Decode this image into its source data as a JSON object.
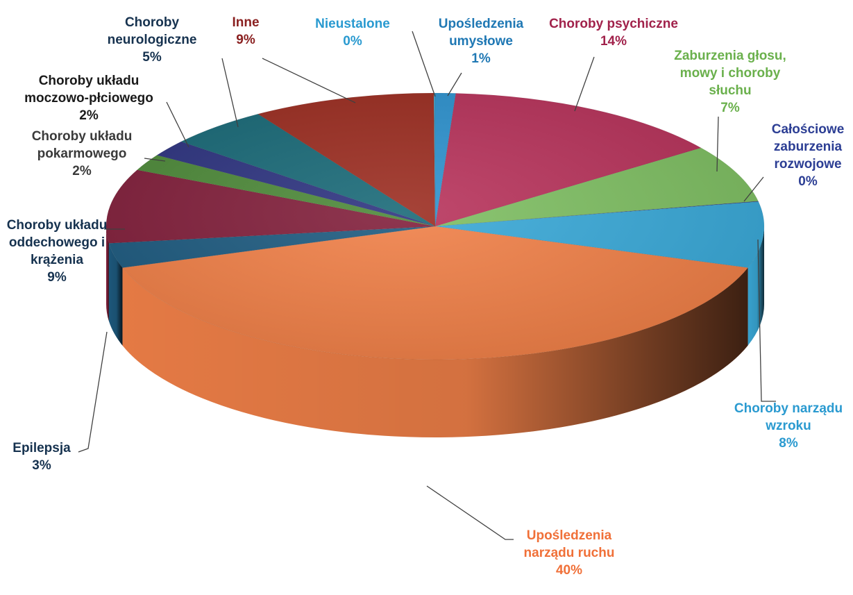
{
  "chart_data": {
    "type": "pie",
    "style": "3d",
    "start": "top, clockwise",
    "slices": [
      {
        "lines": [
          "Upośledzenia",
          "umysłowe",
          "1%"
        ],
        "value": 1,
        "color": "#2f93cf",
        "label_color": "#1f78b4"
      },
      {
        "lines": [
          "Choroby psychiczne",
          "14%"
        ],
        "value": 14,
        "color": "#b8345c",
        "label_color": "#a1224b"
      },
      {
        "lines": [
          "Zaburzenia głosu,",
          "mowy i choroby",
          "słuchu",
          "7%"
        ],
        "value": 7,
        "color": "#7fbf63",
        "label_color": "#6ab04c"
      },
      {
        "lines": [
          "Całościowe",
          "zaburzenia",
          "rozwojowe",
          "0%"
        ],
        "value": 0,
        "color": "#2c3e94",
        "label_color": "#2c3e94"
      },
      {
        "lines": [
          "Choroby narządu",
          "wzroku",
          "8%"
        ],
        "value": 8,
        "color": "#3aa9d8",
        "label_color": "#2a9ad0"
      },
      {
        "lines": [
          "Upośledzenia",
          "narządu ruchu",
          "40%"
        ],
        "value": 40,
        "color": "#f08048",
        "label_color": "#f07038"
      },
      {
        "lines": [
          "Epilepsja",
          "3%"
        ],
        "value": 3,
        "color": "#1e5b80",
        "label_color": "#16324f"
      },
      {
        "lines": [
          "Choroby układu",
          "oddechowego i",
          "krążenia",
          "9%"
        ],
        "value": 9,
        "color": "#82203c",
        "label_color": "#16324f"
      },
      {
        "lines": [
          "Choroby układu",
          "pokarmowego",
          "2%"
        ],
        "value": 2,
        "color": "#4e8a3a",
        "label_color": "#3a3a3a"
      },
      {
        "lines": [
          "Choroby układu",
          "moczowo-płciowego",
          "2%"
        ],
        "value": 2,
        "color": "#2e3480",
        "label_color": "#1a1a1a"
      },
      {
        "lines": [
          "Choroby",
          "neurologiczne",
          "5%"
        ],
        "value": 5,
        "color": "#1a6a78",
        "label_color": "#16324f"
      },
      {
        "lines": [
          "Inne",
          "9%"
        ],
        "value": 9,
        "color": "#9c2e22",
        "label_color": "#8a2020"
      },
      {
        "lines": [
          "Nieustalone",
          "0%"
        ],
        "value": 0,
        "color": "#3aa6d0",
        "label_color": "#2a9ad0"
      }
    ]
  }
}
